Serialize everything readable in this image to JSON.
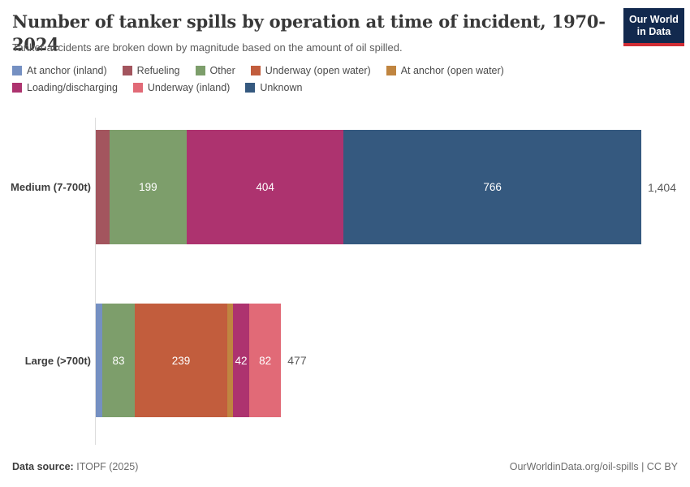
{
  "header": {
    "title": "Number of tanker spills by operation at time of incident, 1970-2024",
    "subtitle": "Tanker accidents are broken down by magnitude based on the amount of oil spilled.",
    "logo": {
      "line1": "Our World",
      "line2": "in Data",
      "bg_color": "#12294e",
      "accent_color": "#d12d35"
    }
  },
  "legend": {
    "items": [
      {
        "label": "At anchor (inland)",
        "color": "#7590c2"
      },
      {
        "label": "Refueling",
        "color": "#a3555e"
      },
      {
        "label": "Other",
        "color": "#7d9e6b"
      },
      {
        "label": "Underway (open water)",
        "color": "#c25d3d"
      },
      {
        "label": "At anchor (open water)",
        "color": "#c08540"
      },
      {
        "label": "Loading/discharging",
        "color": "#ad336f"
      },
      {
        "label": "Underway (inland)",
        "color": "#e16a77"
      },
      {
        "label": "Unknown",
        "color": "#35597f"
      }
    ]
  },
  "chart_data": {
    "type": "bar",
    "subtype": "horizontal-stacked",
    "title": "Number of tanker spills by operation at time of incident, 1970-2024",
    "categories": [
      "Medium (7-700t)",
      "Large (>700t)"
    ],
    "series_order": [
      "At anchor (inland)",
      "Refueling",
      "Other",
      "Underway (open water)",
      "At anchor (open water)",
      "Loading/discharging",
      "Underway (inland)",
      "Unknown"
    ],
    "xmax": 1404,
    "grid": "off",
    "legend_position": "top",
    "bars": [
      {
        "category": "Medium (7-700t)",
        "total": 1404,
        "total_label": "1,404",
        "segments": [
          {
            "name": "Refueling",
            "value": 35,
            "label": ""
          },
          {
            "name": "Other",
            "value": 199,
            "label": "199"
          },
          {
            "name": "Loading/discharging",
            "value": 404,
            "label": "404"
          },
          {
            "name": "Unknown",
            "value": 766,
            "label": "766"
          }
        ]
      },
      {
        "category": "Large (>700t)",
        "total": 477,
        "total_label": "477",
        "segments": [
          {
            "name": "At anchor (inland)",
            "value": 17,
            "label": ""
          },
          {
            "name": "Other",
            "value": 83,
            "label": "83"
          },
          {
            "name": "Underway (open water)",
            "value": 239,
            "label": "239"
          },
          {
            "name": "At anchor (open water)",
            "value": 14,
            "label": ""
          },
          {
            "name": "Loading/discharging",
            "value": 42,
            "label": "42"
          },
          {
            "name": "Underway (inland)",
            "value": 82,
            "label": "82"
          }
        ]
      }
    ]
  },
  "footer": {
    "source_label": "Data source:",
    "source_value": "ITOPF (2025)",
    "rights": "OurWorldinData.org/oil-spills | CC BY"
  }
}
